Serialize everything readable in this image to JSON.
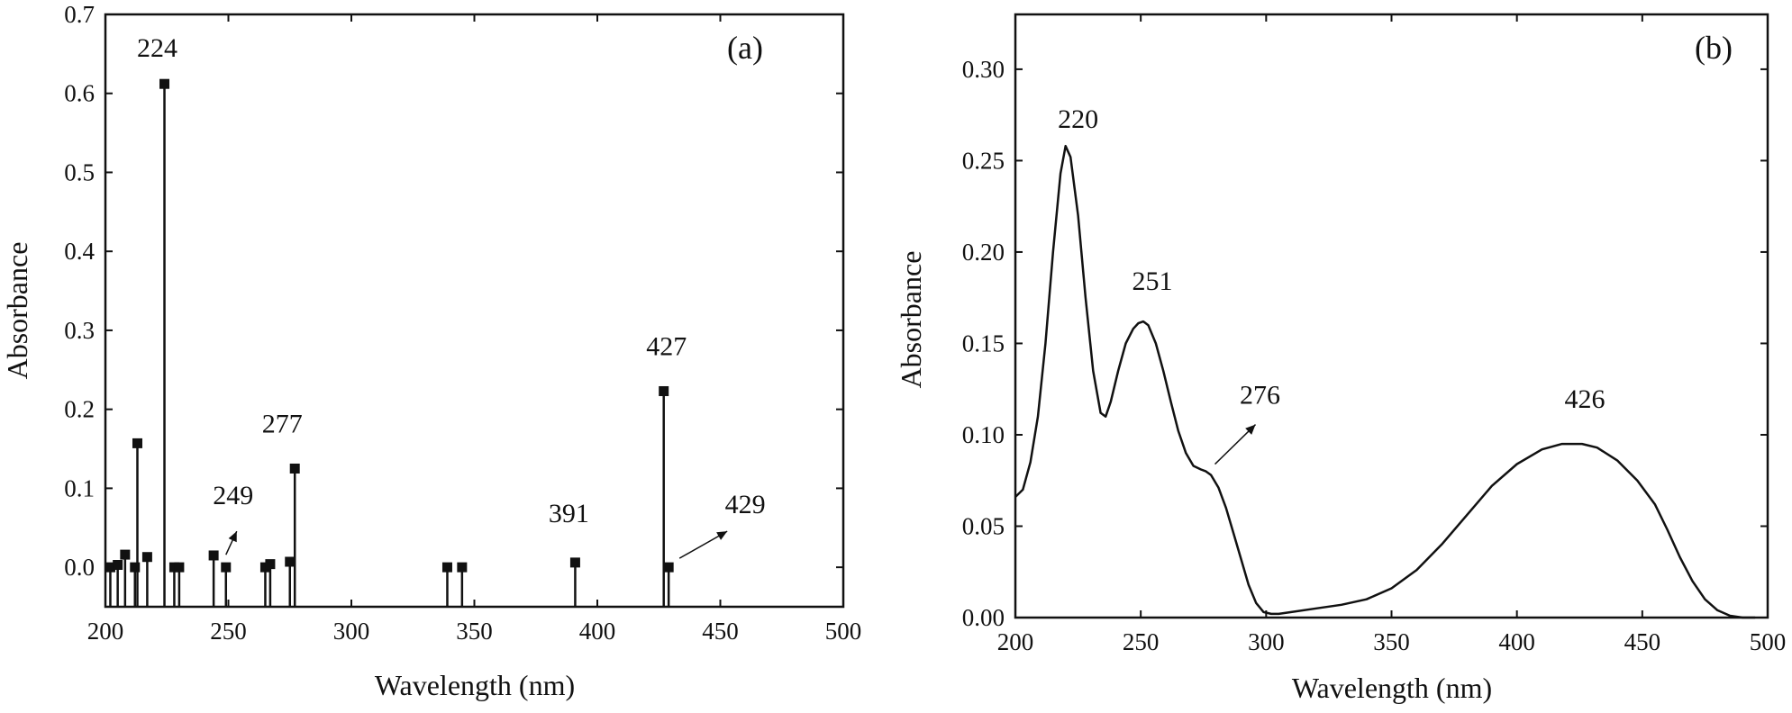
{
  "chart_data": [
    {
      "type": "stem",
      "panel_label": "(a)",
      "xlabel": "Wavelength (nm)",
      "ylabel": "Absorbance",
      "xlim": [
        200,
        500
      ],
      "ylim": [
        -0.05,
        0.7
      ],
      "xticks": [
        200,
        250,
        300,
        350,
        400,
        450,
        500
      ],
      "yticks": [
        0.0,
        0.1,
        0.2,
        0.3,
        0.4,
        0.5,
        0.6,
        0.7
      ],
      "ytick_labels": [
        "0.0",
        "0.1",
        "0.2",
        "0.3",
        "0.4",
        "0.5",
        "0.6",
        "0.7"
      ],
      "points": [
        {
          "x": 202,
          "y": 0.0
        },
        {
          "x": 205,
          "y": 0.003
        },
        {
          "x": 208,
          "y": 0.016
        },
        {
          "x": 212,
          "y": 0.0
        },
        {
          "x": 213,
          "y": 0.157
        },
        {
          "x": 217,
          "y": 0.013
        },
        {
          "x": 224,
          "y": 0.612
        },
        {
          "x": 228,
          "y": 0.0
        },
        {
          "x": 230,
          "y": 0.0
        },
        {
          "x": 244,
          "y": 0.015
        },
        {
          "x": 249,
          "y": 0.0
        },
        {
          "x": 265,
          "y": 0.0
        },
        {
          "x": 267,
          "y": 0.004
        },
        {
          "x": 275,
          "y": 0.007
        },
        {
          "x": 277,
          "y": 0.125
        },
        {
          "x": 339,
          "y": 0.0
        },
        {
          "x": 345,
          "y": 0.0
        },
        {
          "x": 391,
          "y": 0.006
        },
        {
          "x": 427,
          "y": 0.223
        },
        {
          "x": 429,
          "y": 0.0
        }
      ],
      "annotations": [
        {
          "text": "224",
          "x": 224,
          "y": 0.612
        },
        {
          "text": "249",
          "x": 249,
          "y": 0.0,
          "arrow": true
        },
        {
          "text": "277",
          "x": 277,
          "y": 0.125
        },
        {
          "text": "391",
          "x": 391,
          "y": 0.006
        },
        {
          "text": "427",
          "x": 427,
          "y": 0.223
        },
        {
          "text": "429",
          "x": 429,
          "y": 0.0,
          "arrow": true
        }
      ]
    },
    {
      "type": "line",
      "panel_label": "(b)",
      "xlabel": "Wavelength (nm)",
      "ylabel": "Absorbance",
      "xlim": [
        200,
        500
      ],
      "ylim": [
        0.0,
        0.33
      ],
      "xticks": [
        200,
        250,
        300,
        350,
        400,
        450,
        500
      ],
      "yticks": [
        0.0,
        0.05,
        0.1,
        0.15,
        0.2,
        0.25,
        0.3
      ],
      "ytick_labels": [
        "0.00",
        "0.05",
        "0.10",
        "0.15",
        "0.20",
        "0.25",
        "0.30"
      ],
      "x": [
        200,
        203,
        206,
        209,
        212,
        215,
        218,
        220,
        222,
        225,
        228,
        231,
        234,
        236,
        238,
        241,
        244,
        247,
        249,
        251,
        253,
        256,
        259,
        262,
        265,
        268,
        271,
        274,
        276,
        278,
        281,
        284,
        287,
        290,
        293,
        296,
        299,
        302,
        305,
        310,
        320,
        330,
        340,
        350,
        360,
        370,
        380,
        390,
        400,
        410,
        418,
        426,
        432,
        440,
        448,
        455,
        460,
        465,
        470,
        475,
        480,
        485,
        490,
        495
      ],
      "y": [
        0.066,
        0.07,
        0.085,
        0.11,
        0.15,
        0.2,
        0.243,
        0.258,
        0.252,
        0.22,
        0.175,
        0.135,
        0.112,
        0.11,
        0.118,
        0.135,
        0.15,
        0.158,
        0.161,
        0.162,
        0.16,
        0.15,
        0.135,
        0.118,
        0.102,
        0.09,
        0.083,
        0.081,
        0.08,
        0.078,
        0.071,
        0.06,
        0.046,
        0.032,
        0.018,
        0.008,
        0.003,
        0.002,
        0.002,
        0.003,
        0.005,
        0.007,
        0.01,
        0.016,
        0.026,
        0.04,
        0.056,
        0.072,
        0.084,
        0.092,
        0.095,
        0.095,
        0.093,
        0.086,
        0.075,
        0.062,
        0.048,
        0.033,
        0.02,
        0.01,
        0.004,
        0.001,
        0.0,
        0.0
      ],
      "annotations": [
        {
          "text": "220",
          "x": 220,
          "y": 0.258
        },
        {
          "text": "251",
          "x": 251,
          "y": 0.162
        },
        {
          "text": "276",
          "x": 276,
          "y": 0.08,
          "arrow": true
        },
        {
          "text": "426",
          "x": 426,
          "y": 0.095
        }
      ]
    }
  ]
}
